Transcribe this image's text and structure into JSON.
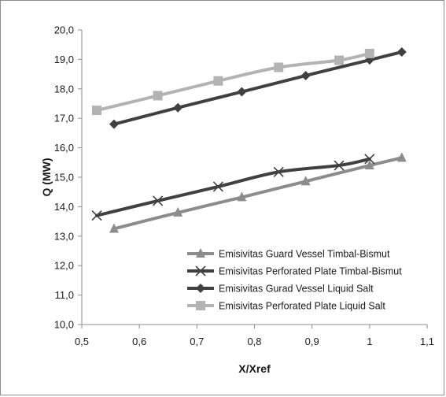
{
  "chart_data": {
    "type": "line",
    "title": "",
    "xlabel": "X/Xref",
    "ylabel": "Q (MW)",
    "xlim": [
      0.5,
      1.1
    ],
    "ylim": [
      10.0,
      20.0
    ],
    "x_ticks": [
      "0,5",
      "0,6",
      "0,7",
      "0,8",
      "0,9",
      "1",
      "1,1"
    ],
    "x_tick_values": [
      0.5,
      0.6,
      0.7,
      0.8,
      0.9,
      1.0,
      1.1
    ],
    "y_ticks": [
      "10,0",
      "11,0",
      "12,0",
      "13,0",
      "14,0",
      "15,0",
      "16,0",
      "17,0",
      "18,0",
      "19,0",
      "20,0"
    ],
    "y_tick_values": [
      10,
      11,
      12,
      13,
      14,
      15,
      16,
      17,
      18,
      19,
      20
    ],
    "grid": false,
    "legend_position": "bottom-right",
    "series": [
      {
        "name": "Emisivitas Guard Vessel Timbal-Bismut",
        "marker": "triangle",
        "color": "#8c8c8c",
        "x": [
          0.556,
          0.667,
          0.778,
          0.889,
          1.0,
          1.056
        ],
        "y": [
          13.25,
          13.8,
          14.32,
          14.86,
          15.4,
          15.66
        ]
      },
      {
        "name": "Emisivitas Perforated Plate Timbal-Bismut",
        "marker": "x",
        "color": "#404040",
        "x": [
          0.526,
          0.632,
          0.737,
          0.842,
          0.947,
          1.0
        ],
        "y": [
          13.7,
          14.2,
          14.68,
          15.18,
          15.4,
          15.62
        ]
      },
      {
        "name": "Emisivitas Gurad Vessel Liquid Salt",
        "marker": "diamond",
        "color": "#404040",
        "x": [
          0.556,
          0.667,
          0.778,
          0.889,
          1.0,
          1.056
        ],
        "y": [
          16.8,
          17.36,
          17.9,
          18.45,
          18.98,
          19.25
        ]
      },
      {
        "name": "Emisivitas Perforated Plate Liquid Salt",
        "marker": "square",
        "color": "#b3b3b3",
        "x": [
          0.526,
          0.632,
          0.737,
          0.842,
          0.947,
          1.0
        ],
        "y": [
          17.27,
          17.77,
          18.27,
          18.73,
          18.97,
          19.2
        ]
      }
    ]
  }
}
